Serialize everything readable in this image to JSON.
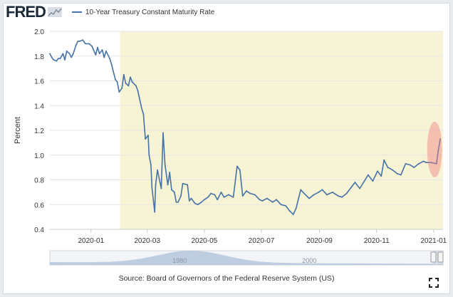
{
  "header": {
    "logo": "FRED",
    "legend_label": "10-Year Treasury Constant Maturity Rate"
  },
  "source": "Source: Board of Governors of the Federal Reserve System (US)",
  "colors": {
    "series": "#4572a7",
    "recession_shade": "#f7f3d5",
    "highlight": "#f08080",
    "navigator_fill": "#a8bdd6",
    "gridline": "#e6e6e6"
  },
  "icons": {
    "logo_mark": "chart-line-icon",
    "expand": "fullscreen-icon"
  },
  "chart_data": {
    "type": "line",
    "ylabel": "Percent",
    "ylim": [
      0.4,
      2.0
    ],
    "yticks": [
      "0.4",
      "0.6",
      "0.8",
      "1.0",
      "1.2",
      "1.4",
      "1.6",
      "1.8",
      "2.0"
    ],
    "xlim": [
      "2019-11-18",
      "2021-01-11"
    ],
    "xticks": [
      "2020-01",
      "2020-03",
      "2020-05",
      "2020-07",
      "2020-09",
      "2020-11",
      "2021-01"
    ],
    "grid": true,
    "recession_shading": {
      "start": "2020-02-01",
      "end": "2021-01-11"
    },
    "highlight_region": {
      "start": "2020-12-25",
      "end": "2021-01-10",
      "ymin": 0.82,
      "ymax": 1.27
    },
    "navigator_labels": [
      "1980",
      "2000"
    ],
    "series": [
      {
        "name": "10-Year Treasury Constant Maturity Rate",
        "x": [
          "2019-11-18",
          "2019-11-20",
          "2019-11-22",
          "2019-11-25",
          "2019-11-27",
          "2019-11-29",
          "2019-12-02",
          "2019-12-04",
          "2019-12-06",
          "2019-12-09",
          "2019-12-11",
          "2019-12-13",
          "2019-12-16",
          "2019-12-18",
          "2019-12-20",
          "2019-12-23",
          "2019-12-26",
          "2019-12-30",
          "2020-01-02",
          "2020-01-06",
          "2020-01-08",
          "2020-01-10",
          "2020-01-13",
          "2020-01-15",
          "2020-01-17",
          "2020-01-21",
          "2020-01-23",
          "2020-01-27",
          "2020-01-29",
          "2020-01-31",
          "2020-02-03",
          "2020-02-05",
          "2020-02-07",
          "2020-02-10",
          "2020-02-12",
          "2020-02-14",
          "2020-02-18",
          "2020-02-20",
          "2020-02-24",
          "2020-02-26",
          "2020-02-28",
          "2020-03-02",
          "2020-03-03",
          "2020-03-05",
          "2020-03-06",
          "2020-03-09",
          "2020-03-10",
          "2020-03-12",
          "2020-03-16",
          "2020-03-18",
          "2020-03-20",
          "2020-03-23",
          "2020-03-25",
          "2020-03-27",
          "2020-03-30",
          "2020-04-01",
          "2020-04-03",
          "2020-04-06",
          "2020-04-08",
          "2020-04-13",
          "2020-04-15",
          "2020-04-17",
          "2020-04-21",
          "2020-04-24",
          "2020-04-28",
          "2020-05-01",
          "2020-05-05",
          "2020-05-08",
          "2020-05-12",
          "2020-05-15",
          "2020-05-19",
          "2020-05-22",
          "2020-05-27",
          "2020-06-01",
          "2020-06-05",
          "2020-06-08",
          "2020-06-11",
          "2020-06-15",
          "2020-06-19",
          "2020-06-24",
          "2020-06-29",
          "2020-07-02",
          "2020-07-07",
          "2020-07-13",
          "2020-07-17",
          "2020-07-22",
          "2020-07-27",
          "2020-07-31",
          "2020-08-04",
          "2020-08-07",
          "2020-08-12",
          "2020-08-17",
          "2020-08-21",
          "2020-08-26",
          "2020-08-31",
          "2020-09-04",
          "2020-09-09",
          "2020-09-15",
          "2020-09-21",
          "2020-09-25",
          "2020-09-30",
          "2020-10-05",
          "2020-10-09",
          "2020-10-14",
          "2020-10-19",
          "2020-10-23",
          "2020-10-28",
          "2020-11-02",
          "2020-11-06",
          "2020-11-09",
          "2020-11-13",
          "2020-11-18",
          "2020-11-23",
          "2020-11-27",
          "2020-12-02",
          "2020-12-07",
          "2020-12-11",
          "2020-12-16",
          "2020-12-21",
          "2020-12-24",
          "2020-12-29",
          "2021-01-04",
          "2021-01-06",
          "2021-01-08"
        ],
        "values": [
          1.82,
          1.79,
          1.77,
          1.76,
          1.78,
          1.78,
          1.82,
          1.77,
          1.84,
          1.82,
          1.79,
          1.82,
          1.89,
          1.92,
          1.92,
          1.93,
          1.9,
          1.9,
          1.88,
          1.81,
          1.87,
          1.82,
          1.85,
          1.79,
          1.84,
          1.78,
          1.73,
          1.61,
          1.59,
          1.51,
          1.54,
          1.65,
          1.58,
          1.56,
          1.63,
          1.59,
          1.56,
          1.52,
          1.38,
          1.33,
          1.13,
          1.16,
          1.0,
          0.92,
          0.74,
          0.54,
          0.76,
          0.88,
          0.73,
          1.18,
          0.92,
          0.76,
          0.86,
          0.72,
          0.7,
          0.62,
          0.62,
          0.67,
          0.77,
          0.76,
          0.63,
          0.65,
          0.61,
          0.6,
          0.62,
          0.64,
          0.66,
          0.69,
          0.68,
          0.64,
          0.7,
          0.66,
          0.68,
          0.66,
          0.91,
          0.88,
          0.67,
          0.71,
          0.69,
          0.68,
          0.64,
          0.63,
          0.65,
          0.62,
          0.64,
          0.6,
          0.59,
          0.55,
          0.52,
          0.57,
          0.72,
          0.68,
          0.65,
          0.68,
          0.7,
          0.72,
          0.68,
          0.7,
          0.67,
          0.66,
          0.69,
          0.74,
          0.78,
          0.73,
          0.79,
          0.84,
          0.79,
          0.87,
          0.83,
          0.96,
          0.9,
          0.88,
          0.85,
          0.84,
          0.93,
          0.92,
          0.9,
          0.93,
          0.95,
          0.94,
          0.94,
          0.93,
          1.04,
          1.13
        ]
      }
    ]
  }
}
